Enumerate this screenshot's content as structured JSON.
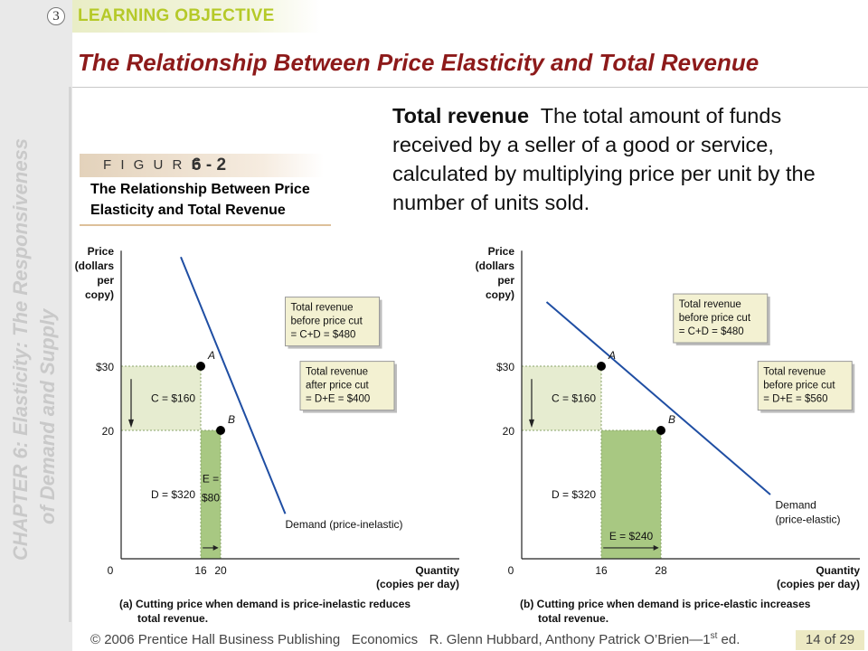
{
  "header": {
    "objective_number": "3",
    "objective_label": "LEARNING OBJECTIVE",
    "title": "The Relationship Between Price Elasticity and Total Revenue"
  },
  "sidebar": {
    "chapter_line1": "CHAPTER 6: Elasticity: The Responsiveness",
    "chapter_line2": "of Demand and Supply"
  },
  "figure": {
    "label": "F I G U R E",
    "number": "6 - 2",
    "caption": "The Relationship Between Price Elasticity and Total Revenue"
  },
  "definition": {
    "term": "Total revenue",
    "text": "The total amount of funds received by a seller of a good or service, calculated by multiplying price per unit by the number of units sold."
  },
  "chart_data": [
    {
      "type": "line",
      "panel": "a",
      "ylabel": [
        "Price",
        "(dollars",
        "per",
        "copy)"
      ],
      "xlabel": [
        "Quantity",
        "(copies per day)"
      ],
      "y_ticks": [
        "$30",
        "20"
      ],
      "x_ticks": [
        "0",
        "16",
        "20"
      ],
      "ylim": [
        0,
        48
      ],
      "xlim": [
        0,
        68
      ],
      "demand": [
        [
          12,
          47
        ],
        [
          33,
          7
        ]
      ],
      "points": [
        {
          "label": "A",
          "x": 16,
          "y": 30
        },
        {
          "label": "B",
          "x": 20,
          "y": 20
        }
      ],
      "areas": [
        {
          "label": "C = $160",
          "x0": 0,
          "x1": 16,
          "y0": 20,
          "y1": 30,
          "color": "#e6ecd0"
        },
        {
          "label": "E = $80",
          "x0": 16,
          "x1": 20,
          "y0": 0,
          "y1": 20,
          "color": "#a8c882"
        }
      ],
      "area_text": [
        {
          "text": "C = $160",
          "x": 6,
          "y": 25
        },
        {
          "text": "D = $320",
          "x": 6,
          "y": 10
        },
        {
          "text": "E =",
          "x": 18,
          "y": 12.5
        },
        {
          "text": "$80",
          "x": 18,
          "y": 9.5
        }
      ],
      "boxes": [
        {
          "lines": [
            "Total revenue",
            "before price cut",
            "= C+D = $480"
          ],
          "x": 33,
          "y": 34
        },
        {
          "lines": [
            "Total revenue",
            "after price cut",
            "= D+E  = $400"
          ],
          "x": 36,
          "y": 24
        }
      ],
      "curve_label": "Demand (price-inelastic)",
      "curve_label_pos": [
        33,
        6.5
      ],
      "caption": [
        "(a) Cutting price when demand is price-inelastic reduces",
        "total revenue."
      ],
      "colors": {
        "demand": "#1f4ea3",
        "area_light": "#e6ecd0",
        "area_dark": "#a8c882"
      }
    },
    {
      "type": "line",
      "panel": "b",
      "ylabel": [
        "Price",
        "(dollars",
        "per",
        "copy)"
      ],
      "xlabel": [
        "Quantity",
        "(copies per day)"
      ],
      "y_ticks": [
        "$30",
        "20"
      ],
      "x_ticks": [
        "0",
        "16",
        "28"
      ],
      "ylim": [
        0,
        48
      ],
      "xlim": [
        0,
        68
      ],
      "demand": [
        [
          5,
          40
        ],
        [
          50,
          10
        ]
      ],
      "points": [
        {
          "label": "A",
          "x": 16,
          "y": 30
        },
        {
          "label": "B",
          "x": 28,
          "y": 20
        }
      ],
      "areas": [
        {
          "label": "C = $160",
          "x0": 0,
          "x1": 16,
          "y0": 20,
          "y1": 30,
          "color": "#e6ecd0"
        },
        {
          "label": "E = $240",
          "x0": 16,
          "x1": 28,
          "y0": 0,
          "y1": 20,
          "color": "#a8c882"
        }
      ],
      "area_text": [
        {
          "text": "C = $160",
          "x": 6,
          "y": 25
        },
        {
          "text": "D = $320",
          "x": 6,
          "y": 10
        },
        {
          "text": "E = $240",
          "x": 22,
          "y": 3.5
        }
      ],
      "boxes": [
        {
          "lines": [
            "Total revenue",
            "before price cut",
            "= C+D = $480"
          ],
          "x": 30.5,
          "y": 34.5
        },
        {
          "lines": [
            "Total revenue",
            "before price cut",
            "= D+E = $560"
          ],
          "x": 47.5,
          "y": 24
        }
      ],
      "curve_label": [
        "Demand",
        "(price-elastic)"
      ],
      "curve_label_pos": [
        51,
        9.5
      ],
      "caption": [
        "(b) Cutting price when demand is price-elastic increases",
        "total revenue."
      ],
      "colors": {
        "demand": "#1f4ea3",
        "area_light": "#e6ecd0",
        "area_dark": "#a8c882"
      }
    }
  ],
  "footer": {
    "copyright": "© 2006 Prentice Hall Business Publishing",
    "book": "Economics",
    "authors": "R. Glenn Hubbard, Anthony Patrick O’Brien—1",
    "edition_sup": "st",
    "edition_rest": " ed.",
    "page": "14 of 29"
  }
}
